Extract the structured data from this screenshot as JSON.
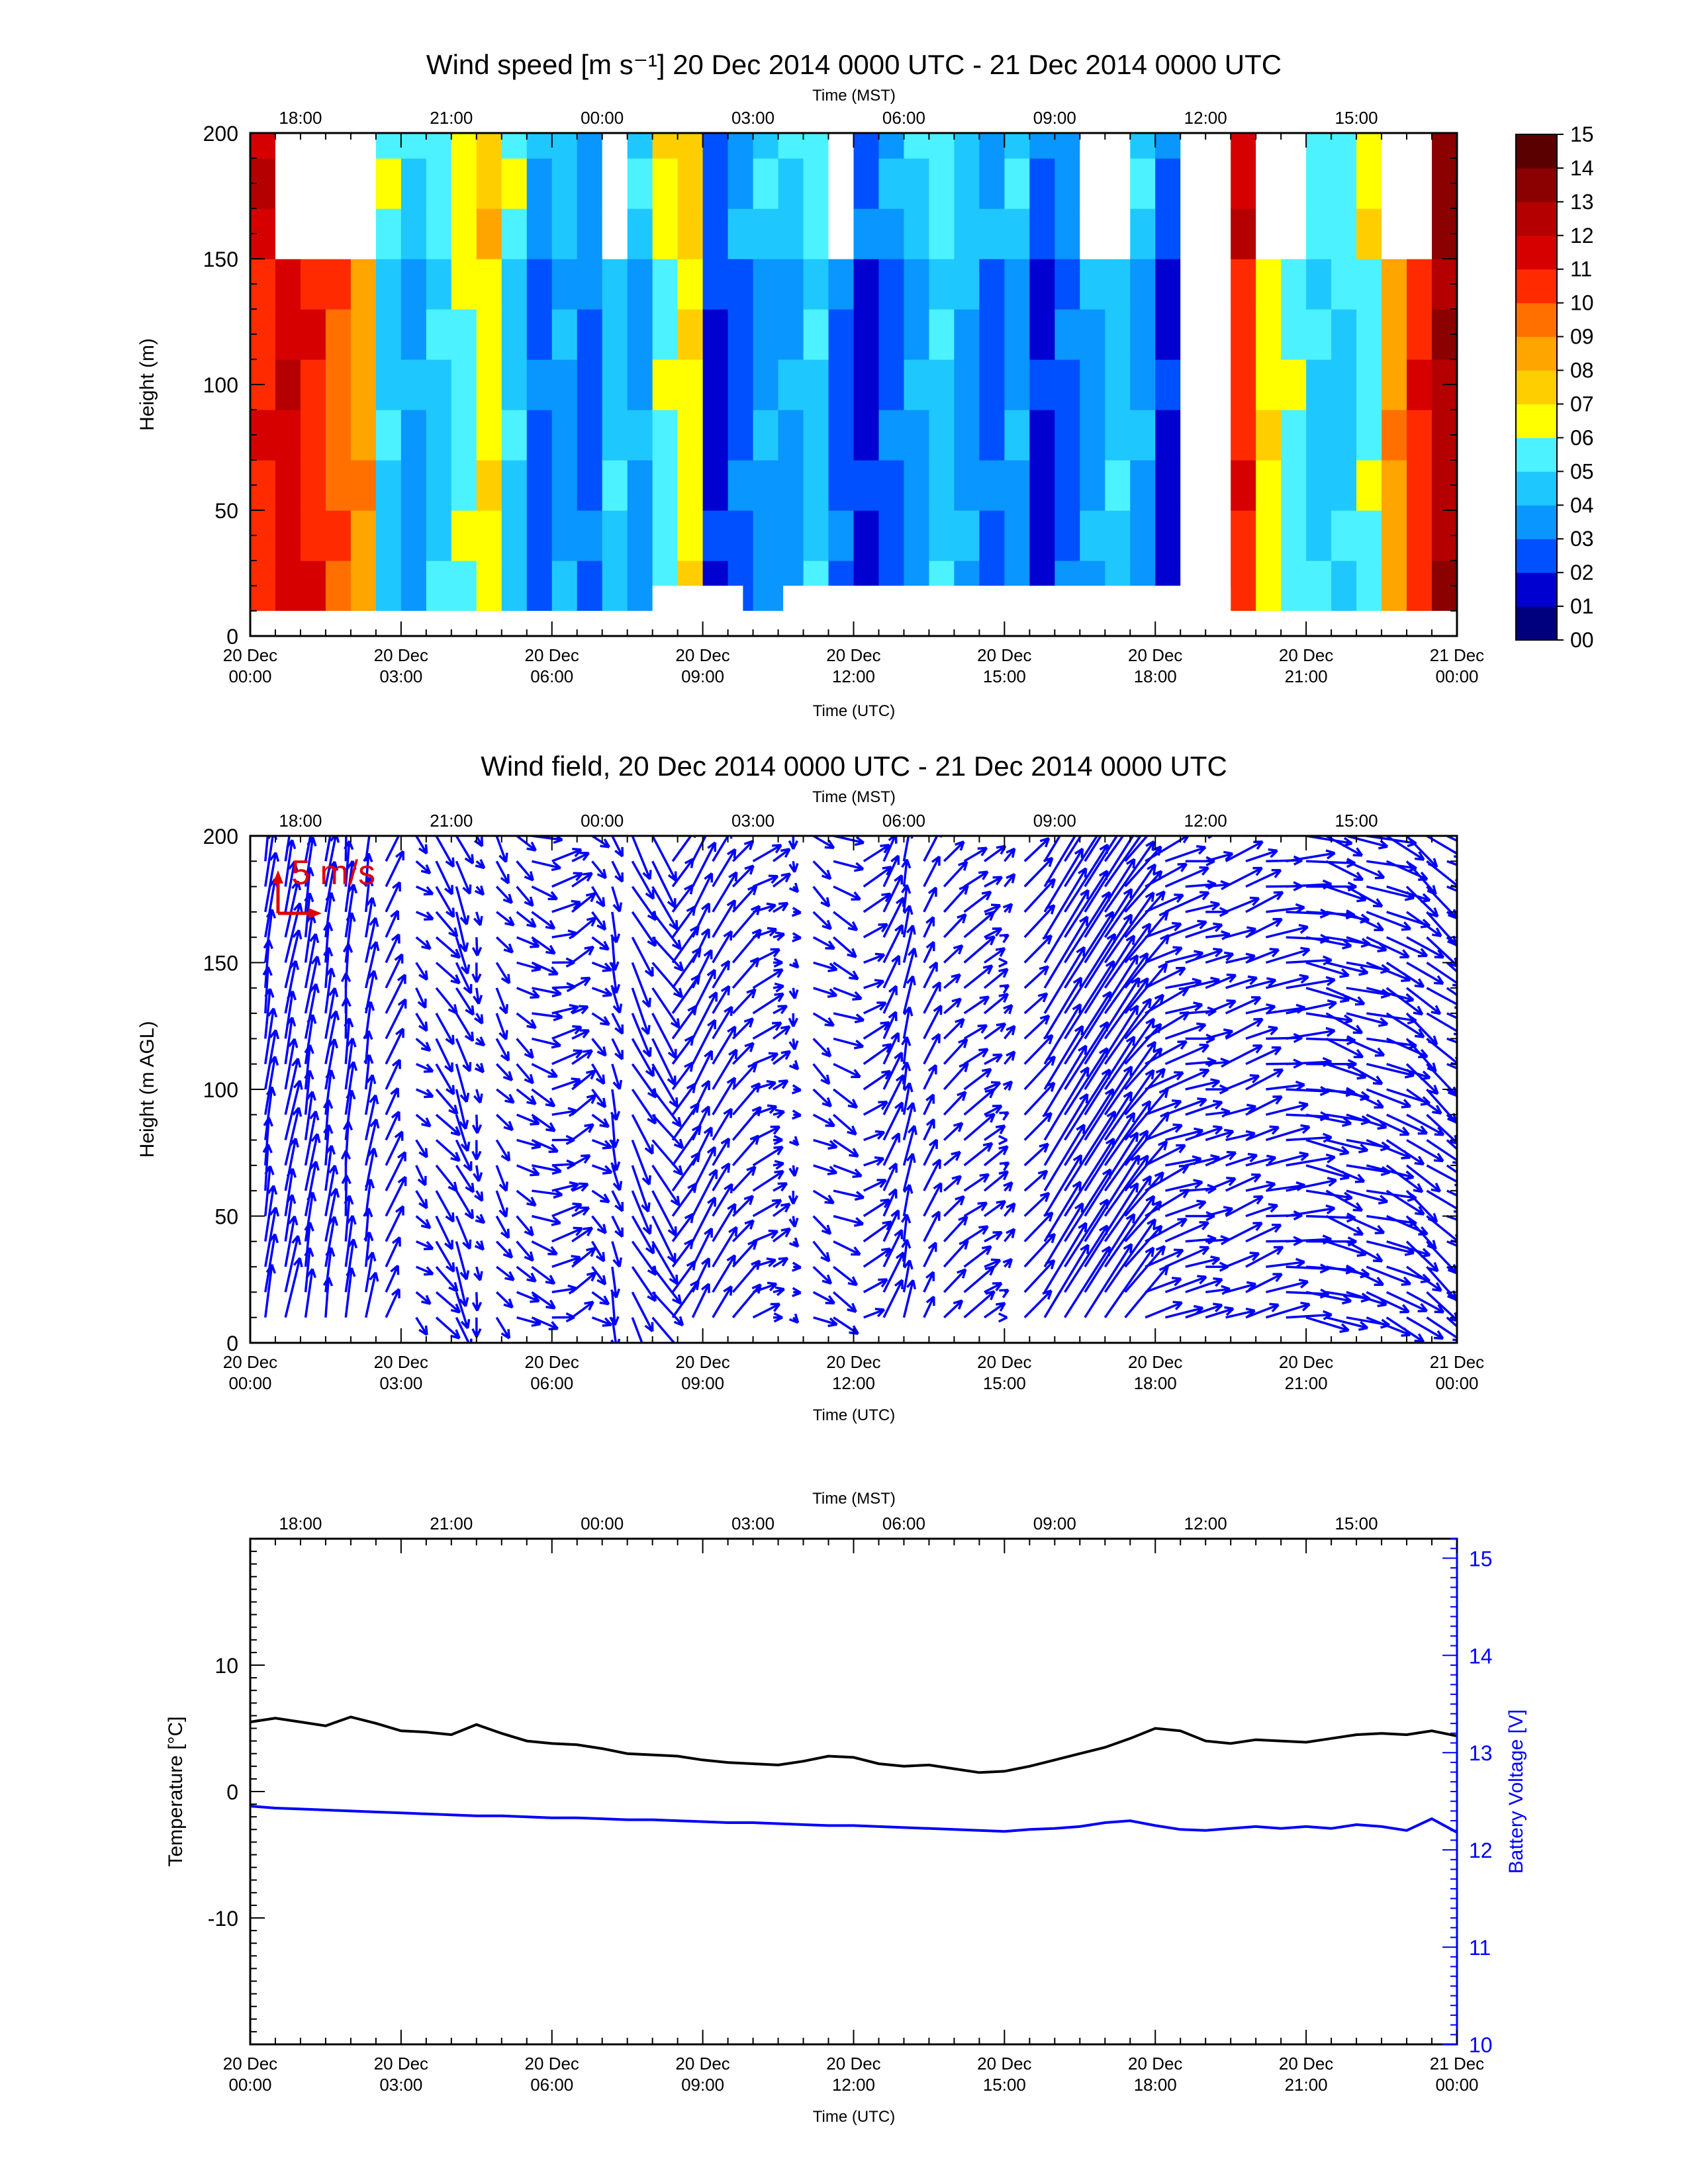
{
  "chart_data": [
    {
      "type": "heatmap",
      "title": "Wind speed [m s⁻¹] 20 Dec 2014 0000 UTC - 21 Dec 2014 0000 UTC",
      "xlabel": "Time (UTC)",
      "x2label": "Time (MST)",
      "ylabel": "Height (m)",
      "x_ticks_utc": [
        "20 Dec 00:00",
        "20 Dec 03:00",
        "20 Dec 06:00",
        "20 Dec 09:00",
        "20 Dec 12:00",
        "20 Dec 15:00",
        "20 Dec 18:00",
        "20 Dec 21:00",
        "21 Dec 00:00"
      ],
      "x_ticks_mst": [
        "18:00",
        "21:00",
        "00:00",
        "03:00",
        "06:00",
        "09:00",
        "12:00",
        "15:00"
      ],
      "y_ticks": [
        "0",
        "50",
        "100",
        "150",
        "200"
      ],
      "xlim_hours": [
        0,
        24
      ],
      "ylim": [
        0,
        200
      ],
      "colorbar_labels": [
        "00",
        "01",
        "02",
        "03",
        "04",
        "05",
        "06",
        "07",
        "08",
        "09",
        "10",
        "11",
        "12",
        "13",
        "14",
        "15"
      ],
      "colorbar_colors": [
        "#00007f",
        "#0000d0",
        "#0050ff",
        "#0a96ff",
        "#1ec8ff",
        "#4cf2ff",
        "#ffff00",
        "#ffce00",
        "#ffa500",
        "#ff7000",
        "#ff2a00",
        "#d70000",
        "#b50000",
        "#8b0000",
        "#5a0000",
        "#2a0000"
      ],
      "data_rows_height_m": [
        10,
        30,
        50,
        70,
        90,
        110,
        130,
        150,
        170,
        190,
        200
      ],
      "data_cols_time_h": [
        0.0,
        0.5,
        1.0,
        1.5,
        2.0,
        2.5,
        3.0,
        3.5,
        4.0,
        4.5,
        5.0,
        5.5,
        6.0,
        6.5,
        7.0,
        7.5,
        8.0,
        8.5,
        9.0,
        9.5,
        10.0,
        10.5,
        11.0,
        11.5,
        12.0,
        12.5,
        13.0,
        13.5,
        14.0,
        14.5,
        15.0,
        15.5,
        16.0,
        16.5,
        17.0,
        17.5,
        18.0,
        18.5,
        19.0,
        19.5,
        20.0,
        20.5,
        21.0,
        21.5,
        22.0,
        22.5,
        23.0,
        23.5,
        24.0
      ],
      "speed_profile_by_time": [
        10,
        11,
        10,
        9,
        8,
        4,
        3,
        4,
        5,
        6,
        4,
        2,
        3,
        2,
        4,
        3,
        5,
        6,
        1,
        2,
        3,
        3,
        4,
        2,
        1,
        2,
        3,
        4,
        3,
        2,
        3,
        1,
        2,
        3,
        4,
        3,
        1,
        -1,
        -1,
        10,
        6,
        5,
        4,
        4,
        5,
        8,
        10,
        12,
        12
      ],
      "missing_top_blocks_h": [
        [
          0.5,
          2.2
        ],
        [
          6.9,
          7.5
        ],
        [
          11.4,
          12.0
        ],
        [
          16.5,
          17.2
        ],
        [
          19.6,
          20.6
        ],
        [
          22.2,
          23.4
        ]
      ],
      "missing_vertical_gap_h": [
        [
          18.8,
          19.4
        ]
      ],
      "missing_bottom_gap_h": [
        [
          8.0,
          9.8
        ],
        [
          10.6,
          19.5
        ]
      ]
    },
    {
      "type": "scatter",
      "title": "Wind field, 20 Dec 2014 0000 UTC - 21 Dec 2014 0000 UTC",
      "xlabel": "Time (UTC)",
      "x2label": "Time (MST)",
      "ylabel": "Height (m AGL)",
      "x_ticks_utc": [
        "20 Dec 00:00",
        "20 Dec 03:00",
        "20 Dec 06:00",
        "20 Dec 09:00",
        "20 Dec 12:00",
        "20 Dec 15:00",
        "20 Dec 18:00",
        "20 Dec 21:00",
        "21 Dec 00:00"
      ],
      "x_ticks_mst": [
        "18:00",
        "21:00",
        "00:00",
        "03:00",
        "06:00",
        "09:00",
        "12:00",
        "15:00"
      ],
      "y_ticks": [
        "0",
        "50",
        "100",
        "150",
        "200"
      ],
      "xlim_hours": [
        0,
        24
      ],
      "ylim": [
        0,
        200
      ],
      "scale_label": "5 m/s",
      "scale_color": "#e00000",
      "vector_color": "#0000ff",
      "vector_heights_m": [
        10,
        20,
        30,
        40,
        50,
        60,
        70,
        80,
        90,
        100,
        110,
        120,
        130,
        140,
        150,
        160,
        170,
        180,
        190,
        200
      ],
      "vector_times_h": [
        0.3,
        0.7,
        1.1,
        1.5,
        1.9,
        2.3,
        2.7,
        3.3,
        3.7,
        4.1,
        4.5,
        4.9,
        5.3,
        5.6,
        6.0,
        6.4,
        6.8,
        7.2,
        7.6,
        8.0,
        8.4,
        8.8,
        9.2,
        9.6,
        10.0,
        10.4,
        10.8,
        11.2,
        11.6,
        12.2,
        12.6,
        13.0,
        13.4,
        13.8,
        14.2,
        14.6,
        15.0,
        15.4,
        15.8,
        16.2,
        16.6,
        17.0,
        17.4,
        17.8,
        18.2,
        18.6,
        19.0,
        19.4,
        19.8,
        20.2,
        20.6,
        21.0,
        21.4,
        21.8,
        22.2,
        22.6,
        23.0,
        23.4,
        23.8
      ],
      "vector_u_by_time_ms": [
        0.5,
        0.8,
        0.6,
        0.5,
        0.3,
        0.5,
        1.2,
        1.0,
        1.5,
        1.0,
        0.3,
        1.0,
        1.5,
        2.0,
        2.0,
        1.5,
        1.2,
        0.5,
        1.5,
        2.0,
        1.8,
        1.5,
        1.5,
        1.8,
        2.0,
        1.0,
        0.3,
        1.5,
        2.0,
        1.8,
        1.2,
        0.5,
        1.0,
        1.5,
        2.0,
        1.5,
        0.5,
        2.0,
        3.0,
        3.5,
        3.8,
        3.5,
        3.0,
        3.0,
        3.0,
        2.5,
        2.0,
        2.5,
        2.5,
        3.0,
        3.5,
        3.5,
        3.0,
        3.0,
        3.5,
        3.0,
        2.5,
        2.5,
        2.5
      ],
      "vector_v_by_time_ms": [
        4.0,
        4.0,
        3.8,
        3.5,
        3.5,
        3.0,
        2.5,
        -1.0,
        -2.0,
        -2.5,
        -1.0,
        -1.5,
        -1.0,
        -0.8,
        0.5,
        1.0,
        -1.0,
        -2.0,
        -3.0,
        -3.0,
        2.5,
        3.0,
        2.5,
        2.0,
        1.0,
        0.5,
        -0.5,
        -1.0,
        -1.0,
        1.0,
        2.5,
        2.5,
        2.0,
        1.5,
        1.5,
        1.0,
        0.5,
        2.0,
        5.0,
        5.5,
        6.0,
        5.0,
        3.5,
        1.5,
        1.0,
        0.5,
        0.5,
        1.0,
        1.0,
        0.5,
        0.3,
        -0.5,
        -1.0,
        -1.0,
        -1.0,
        -1.5,
        -2.0,
        -2.0,
        -1.5
      ]
    },
    {
      "type": "line",
      "xlabel": "Time (UTC)",
      "x2label": "Time (MST)",
      "ylabel": "Temperature [°C]",
      "y2label": "Battery Voltage [V]",
      "x_ticks_utc": [
        "20 Dec 00:00",
        "20 Dec 03:00",
        "20 Dec 06:00",
        "20 Dec 09:00",
        "20 Dec 12:00",
        "20 Dec 15:00",
        "20 Dec 18:00",
        "20 Dec 21:00",
        "21 Dec 00:00"
      ],
      "x_ticks_mst": [
        "18:00",
        "21:00",
        "00:00",
        "03:00",
        "06:00",
        "09:00",
        "12:00",
        "15:00"
      ],
      "y_ticks": [
        "-10",
        "0",
        "10"
      ],
      "y2_ticks": [
        "10",
        "11",
        "12",
        "13",
        "14",
        "15"
      ],
      "xlim_hours": [
        0,
        24
      ],
      "ylim": [
        -20,
        20
      ],
      "y2lim": [
        10,
        15.2
      ],
      "temperature_color": "#000000",
      "voltage_color": "#0000ff",
      "time_h": [
        0,
        0.5,
        1,
        1.5,
        2,
        2.5,
        3,
        3.5,
        4,
        4.5,
        5,
        5.5,
        6,
        6.5,
        7,
        7.5,
        8,
        8.5,
        9,
        9.5,
        10,
        10.5,
        11,
        11.5,
        12,
        12.5,
        13,
        13.5,
        14,
        14.5,
        15,
        15.5,
        16,
        16.5,
        17,
        17.5,
        18,
        18.5,
        19,
        19.5,
        20,
        20.5,
        21,
        21.5,
        22,
        22.5,
        23,
        23.5,
        24
      ],
      "temperature_c": [
        5.5,
        5.8,
        5.5,
        5.2,
        5.9,
        5.4,
        4.8,
        4.7,
        4.5,
        5.3,
        4.6,
        4.0,
        3.8,
        3.7,
        3.4,
        3.0,
        2.9,
        2.8,
        2.5,
        2.3,
        2.2,
        2.1,
        2.4,
        2.8,
        2.7,
        2.2,
        2.0,
        2.1,
        1.8,
        1.5,
        1.6,
        2.0,
        2.5,
        3.0,
        3.5,
        4.2,
        5.0,
        4.8,
        4.0,
        3.8,
        4.1,
        4.0,
        3.9,
        4.2,
        4.5,
        4.6,
        4.5,
        4.8,
        4.4
      ],
      "voltage_v": [
        12.45,
        12.43,
        12.42,
        12.41,
        12.4,
        12.39,
        12.38,
        12.37,
        12.36,
        12.35,
        12.35,
        12.34,
        12.33,
        12.33,
        12.32,
        12.31,
        12.31,
        12.3,
        12.29,
        12.28,
        12.28,
        12.27,
        12.26,
        12.25,
        12.25,
        12.24,
        12.23,
        12.22,
        12.21,
        12.2,
        12.19,
        12.21,
        12.22,
        12.24,
        12.28,
        12.3,
        12.25,
        12.21,
        12.2,
        12.22,
        12.24,
        12.22,
        12.24,
        12.22,
        12.26,
        12.24,
        12.2,
        12.32,
        12.18
      ]
    }
  ]
}
